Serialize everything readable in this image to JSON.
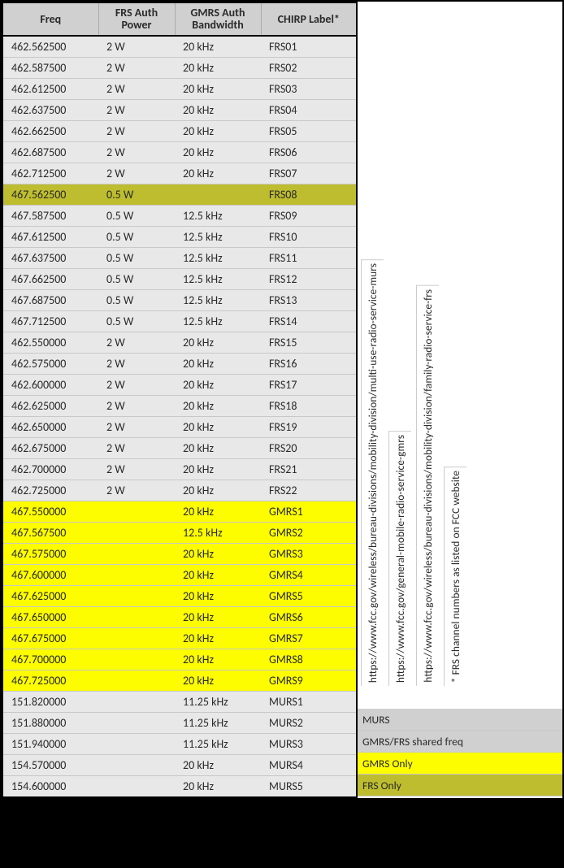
{
  "columns": [
    "Freq",
    "FRS Auth Power",
    "GMRS Auth Bandwidth",
    "CHIRP Label*"
  ],
  "rows": [
    {
      "freq": "462.562500",
      "power": "2 W",
      "bw": "20 kHz",
      "label": "FRS01",
      "hl": "none"
    },
    {
      "freq": "462.587500",
      "power": "2 W",
      "bw": "20 kHz",
      "label": "FRS02",
      "hl": "none"
    },
    {
      "freq": "462.612500",
      "power": "2 W",
      "bw": "20 kHz",
      "label": "FRS03",
      "hl": "none"
    },
    {
      "freq": "462.637500",
      "power": "2 W",
      "bw": "20 kHz",
      "label": "FRS04",
      "hl": "none"
    },
    {
      "freq": "462.662500",
      "power": "2 W",
      "bw": "20 kHz",
      "label": "FRS05",
      "hl": "none"
    },
    {
      "freq": "462.687500",
      "power": "2 W",
      "bw": "20 kHz",
      "label": "FRS06",
      "hl": "none"
    },
    {
      "freq": "462.712500",
      "power": "2 W",
      "bw": "20 kHz",
      "label": "FRS07",
      "hl": "none"
    },
    {
      "freq": "467.562500",
      "power": "0.5 W",
      "bw": "",
      "label": "FRS08",
      "hl": "olive"
    },
    {
      "freq": "467.587500",
      "power": "0.5 W",
      "bw": "12.5 kHz",
      "label": "FRS09",
      "hl": "none"
    },
    {
      "freq": "467.612500",
      "power": "0.5 W",
      "bw": "12.5 kHz",
      "label": "FRS10",
      "hl": "none"
    },
    {
      "freq": "467.637500",
      "power": "0.5 W",
      "bw": "12.5 kHz",
      "label": "FRS11",
      "hl": "none"
    },
    {
      "freq": "467.662500",
      "power": "0.5 W",
      "bw": "12.5 kHz",
      "label": "FRS12",
      "hl": "none"
    },
    {
      "freq": "467.687500",
      "power": "0.5 W",
      "bw": "12.5 kHz",
      "label": "FRS13",
      "hl": "none"
    },
    {
      "freq": "467.712500",
      "power": "0.5 W",
      "bw": "12.5 kHz",
      "label": "FRS14",
      "hl": "none"
    },
    {
      "freq": "462.550000",
      "power": "2 W",
      "bw": "20 kHz",
      "label": "FRS15",
      "hl": "none"
    },
    {
      "freq": "462.575000",
      "power": "2 W",
      "bw": "20 kHz",
      "label": "FRS16",
      "hl": "none"
    },
    {
      "freq": "462.600000",
      "power": "2 W",
      "bw": "20 kHz",
      "label": "FRS17",
      "hl": "none"
    },
    {
      "freq": "462.625000",
      "power": "2 W",
      "bw": "20 kHz",
      "label": "FRS18",
      "hl": "none"
    },
    {
      "freq": "462.650000",
      "power": "2 W",
      "bw": "20 kHz",
      "label": "FRS19",
      "hl": "none"
    },
    {
      "freq": "462.675000",
      "power": "2 W",
      "bw": "20 kHz",
      "label": "FRS20",
      "hl": "none"
    },
    {
      "freq": "462.700000",
      "power": "2 W",
      "bw": "20 kHz",
      "label": "FRS21",
      "hl": "none"
    },
    {
      "freq": "462.725000",
      "power": "2 W",
      "bw": "20 kHz",
      "label": "FRS22",
      "hl": "none"
    },
    {
      "freq": "467.550000",
      "power": "",
      "bw": "20 kHz",
      "label": "GMRS1",
      "hl": "yellow"
    },
    {
      "freq": "467.567500",
      "power": "",
      "bw": "12.5 kHz",
      "label": "GMRS2",
      "hl": "yellow"
    },
    {
      "freq": "467.575000",
      "power": "",
      "bw": "20 kHz",
      "label": "GMRS3",
      "hl": "yellow"
    },
    {
      "freq": "467.600000",
      "power": "",
      "bw": "20 kHz",
      "label": "GMRS4",
      "hl": "yellow"
    },
    {
      "freq": "467.625000",
      "power": "",
      "bw": "20 kHz",
      "label": "GMRS5",
      "hl": "yellow"
    },
    {
      "freq": "467.650000",
      "power": "",
      "bw": "20 kHz",
      "label": "GMRS6",
      "hl": "yellow"
    },
    {
      "freq": "467.675000",
      "power": "",
      "bw": "20 kHz",
      "label": "GMRS7",
      "hl": "yellow"
    },
    {
      "freq": "467.700000",
      "power": "",
      "bw": "20 kHz",
      "label": "GMRS8",
      "hl": "yellow"
    },
    {
      "freq": "467.725000",
      "power": "",
      "bw": "20 kHz",
      "label": "GMRS9",
      "hl": "yellow"
    },
    {
      "freq": "151.820000",
      "power": "",
      "bw": "11.25 kHz",
      "label": "MURS1",
      "hl": "none"
    },
    {
      "freq": "151.880000",
      "power": "",
      "bw": "11.25 kHz",
      "label": "MURS2",
      "hl": "none"
    },
    {
      "freq": "151.940000",
      "power": "",
      "bw": "11.25 kHz",
      "label": "MURS3",
      "hl": "none"
    },
    {
      "freq": "154.570000",
      "power": "",
      "bw": "20 kHz",
      "label": "MURS4",
      "hl": "none"
    },
    {
      "freq": "154.600000",
      "power": "",
      "bw": "20 kHz",
      "label": "MURS5",
      "hl": "none"
    }
  ],
  "links": {
    "murs": "https://www.fcc.gov/wireless/bureau-divisions/mobility-division/multi-use-radio-service-murs",
    "gmrs": "https://www.fcc.gov/general-mobile-radio-service-gmrs",
    "frs": "https://www.fcc.gov/wireless/bureau-divisions/mobility-division/family-radio-service-frs",
    "note": "* FRS channel numbers as listed on FCC website"
  },
  "legend": {
    "murs": "MURS",
    "shared": "GMRS/FRS shared freq",
    "gmrs": "GMRS Only",
    "frs": "FRS Only"
  },
  "colors": {
    "olive": "#bdbd2f",
    "yellow": "#fdfd00",
    "header": "#d0d0d0",
    "body": "#e8e8e8"
  }
}
